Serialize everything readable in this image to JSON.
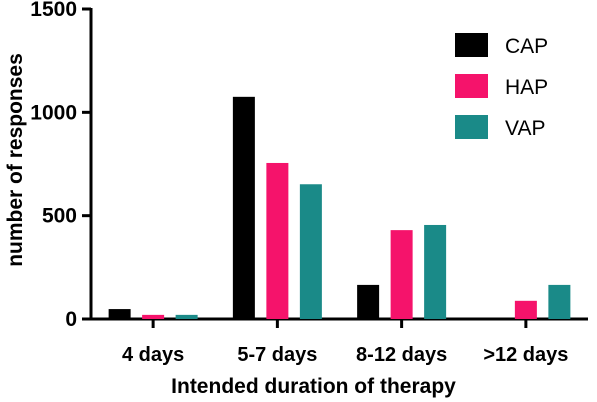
{
  "chart_data": {
    "type": "bar",
    "xlabel": "Intended duration of therapy",
    "ylabel": "number of responses",
    "ylim": [
      0,
      1500
    ],
    "yticks": [
      0,
      500,
      1000,
      1500
    ],
    "categories": [
      "4 days",
      "5-7 days",
      "8-12 days",
      ">12 days"
    ],
    "series": [
      {
        "name": "CAP",
        "color": "#000000",
        "values": [
          48,
          1075,
          165,
          0
        ]
      },
      {
        "name": "HAP",
        "color": "#f5136b",
        "values": [
          20,
          755,
          430,
          88
        ]
      },
      {
        "name": "VAP",
        "color": "#1a8a88",
        "values": [
          20,
          652,
          455,
          165
        ]
      }
    ],
    "legend": "top-right",
    "grid": false
  }
}
